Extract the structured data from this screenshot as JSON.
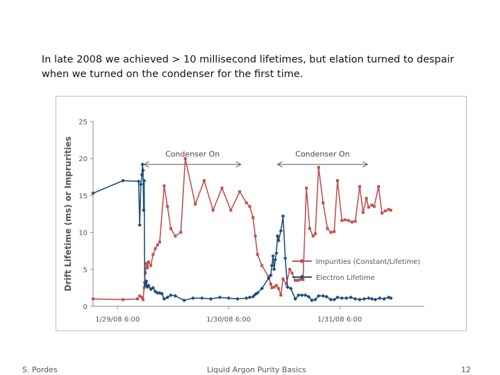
{
  "caption": {
    "line1": "In late 2008  we achieved > 10 millisecond lifetimes,  but elation turned to despair",
    "line2": "when we turned on the condenser for the first time."
  },
  "footer": {
    "author": "S. Pordes",
    "title": "Liquid Argon Purity Basics",
    "page": "12"
  },
  "chart_data": {
    "type": "line",
    "title": "",
    "xlabel": "",
    "ylabel": "Drift Lifetime (ms) or Imprurities",
    "xlim_days": [
      0,
      3.2
    ],
    "ylim": [
      0,
      25
    ],
    "yticks": [
      "0",
      "5",
      "10",
      "15",
      "20",
      "25"
    ],
    "xticks": [
      {
        "label": "1/29/08 6:00",
        "day": 0.0
      },
      {
        "label": "1/30/08 6:00",
        "day": 1.0
      },
      {
        "label": "1/31/08 6:00",
        "day": 2.0
      }
    ],
    "grid": false,
    "legend": "right",
    "annotations": [
      {
        "text": "Condenser On",
        "from_day": 0.24,
        "to_day": 1.11
      },
      {
        "text": "Condenser On",
        "from_day": 1.44,
        "to_day": 2.25
      }
    ],
    "colors": {
      "impurities": "#c0504d",
      "electron": "#1f4e79",
      "axis": "#8a8a8a",
      "text": "#555555"
    },
    "series": [
      {
        "name": "Impurities (Constant/Lifetime)",
        "marker": "square",
        "points": [
          [
            -0.22,
            1.0
          ],
          [
            0.05,
            0.9
          ],
          [
            0.18,
            1.0
          ],
          [
            0.2,
            1.4
          ],
          [
            0.22,
            1.2
          ],
          [
            0.23,
            0.9
          ],
          [
            0.24,
            2.5
          ],
          [
            0.25,
            4.5
          ],
          [
            0.26,
            5.8
          ],
          [
            0.27,
            5.2
          ],
          [
            0.28,
            6.0
          ],
          [
            0.3,
            5.5
          ],
          [
            0.32,
            7.0
          ],
          [
            0.34,
            7.8
          ],
          [
            0.36,
            8.3
          ],
          [
            0.38,
            8.7
          ],
          [
            0.42,
            16.3
          ],
          [
            0.45,
            13.5
          ],
          [
            0.48,
            10.5
          ],
          [
            0.52,
            9.5
          ],
          [
            0.57,
            10.0
          ],
          [
            0.61,
            20.0
          ],
          [
            0.7,
            13.8
          ],
          [
            0.78,
            17.0
          ],
          [
            0.86,
            13.0
          ],
          [
            0.94,
            16.0
          ],
          [
            1.02,
            13.0
          ],
          [
            1.1,
            15.5
          ],
          [
            1.16,
            14.0
          ],
          [
            1.19,
            13.5
          ],
          [
            1.22,
            12.0
          ],
          [
            1.24,
            9.5
          ],
          [
            1.26,
            7.0
          ],
          [
            1.3,
            5.5
          ],
          [
            1.36,
            4.0
          ],
          [
            1.38,
            3.0
          ],
          [
            1.39,
            2.5
          ],
          [
            1.41,
            2.6
          ],
          [
            1.43,
            2.8
          ],
          [
            1.45,
            2.4
          ],
          [
            1.47,
            1.5
          ],
          [
            1.49,
            3.7
          ],
          [
            1.52,
            3.0
          ],
          [
            1.55,
            5.0
          ],
          [
            1.57,
            4.5
          ],
          [
            1.6,
            3.5
          ],
          [
            1.62,
            3.5
          ],
          [
            1.64,
            3.6
          ],
          [
            1.67,
            3.6
          ],
          [
            1.7,
            16.0
          ],
          [
            1.73,
            10.5
          ],
          [
            1.76,
            9.5
          ],
          [
            1.78,
            9.8
          ],
          [
            1.81,
            18.8
          ],
          [
            1.85,
            14.0
          ],
          [
            1.89,
            10.5
          ],
          [
            1.92,
            10.0
          ],
          [
            1.95,
            10.1
          ],
          [
            1.98,
            17.0
          ],
          [
            2.02,
            11.6
          ],
          [
            2.05,
            11.7
          ],
          [
            2.08,
            11.6
          ],
          [
            2.11,
            11.4
          ],
          [
            2.14,
            11.5
          ],
          [
            2.18,
            16.2
          ],
          [
            2.21,
            12.7
          ],
          [
            2.24,
            14.6
          ],
          [
            2.26,
            13.4
          ],
          [
            2.29,
            13.7
          ],
          [
            2.31,
            13.5
          ],
          [
            2.35,
            16.2
          ],
          [
            2.38,
            12.6
          ],
          [
            2.41,
            12.9
          ],
          [
            2.44,
            13.1
          ],
          [
            2.46,
            13.0
          ]
        ]
      },
      {
        "name": "Electron Lifetime",
        "marker": "diamond",
        "points": [
          [
            -0.22,
            15.3
          ],
          [
            0.05,
            17.0
          ],
          [
            0.19,
            16.9
          ],
          [
            0.2,
            11.0
          ],
          [
            0.21,
            16.5
          ],
          [
            0.22,
            17.8
          ],
          [
            0.225,
            19.2
          ],
          [
            0.23,
            18.4
          ],
          [
            0.235,
            13.0
          ],
          [
            0.24,
            17.0
          ],
          [
            0.245,
            3.2
          ],
          [
            0.25,
            2.8
          ],
          [
            0.26,
            3.4
          ],
          [
            0.27,
            2.6
          ],
          [
            0.28,
            2.8
          ],
          [
            0.3,
            2.3
          ],
          [
            0.32,
            2.5
          ],
          [
            0.34,
            2.0
          ],
          [
            0.36,
            1.8
          ],
          [
            0.38,
            1.8
          ],
          [
            0.4,
            1.7
          ],
          [
            0.42,
            1.0
          ],
          [
            0.45,
            1.2
          ],
          [
            0.48,
            1.5
          ],
          [
            0.52,
            1.4
          ],
          [
            0.6,
            0.8
          ],
          [
            0.68,
            1.1
          ],
          [
            0.76,
            1.1
          ],
          [
            0.84,
            1.0
          ],
          [
            0.92,
            1.2
          ],
          [
            1.0,
            1.1
          ],
          [
            1.08,
            1.0
          ],
          [
            1.16,
            1.1
          ],
          [
            1.19,
            1.2
          ],
          [
            1.22,
            1.3
          ],
          [
            1.24,
            1.6
          ],
          [
            1.26,
            1.8
          ],
          [
            1.3,
            2.4
          ],
          [
            1.36,
            3.8
          ],
          [
            1.38,
            4.2
          ],
          [
            1.39,
            5.5
          ],
          [
            1.4,
            6.8
          ],
          [
            1.41,
            5.0
          ],
          [
            1.42,
            6.3
          ],
          [
            1.43,
            7.2
          ],
          [
            1.44,
            9.5
          ],
          [
            1.45,
            8.9
          ],
          [
            1.47,
            10.2
          ],
          [
            1.49,
            12.2
          ],
          [
            1.51,
            6.5
          ],
          [
            1.53,
            2.6
          ],
          [
            1.56,
            2.4
          ],
          [
            1.6,
            1.0
          ],
          [
            1.63,
            1.5
          ],
          [
            1.66,
            1.5
          ],
          [
            1.69,
            1.5
          ],
          [
            1.72,
            1.3
          ],
          [
            1.75,
            0.8
          ],
          [
            1.78,
            0.9
          ],
          [
            1.81,
            1.4
          ],
          [
            1.85,
            1.4
          ],
          [
            1.88,
            1.3
          ],
          [
            1.92,
            0.9
          ],
          [
            1.95,
            0.9
          ],
          [
            1.98,
            1.2
          ],
          [
            2.02,
            1.1
          ],
          [
            2.06,
            1.1
          ],
          [
            2.1,
            1.2
          ],
          [
            2.14,
            1.0
          ],
          [
            2.18,
            0.9
          ],
          [
            2.22,
            1.0
          ],
          [
            2.26,
            1.1
          ],
          [
            2.29,
            1.0
          ],
          [
            2.32,
            0.9
          ],
          [
            2.36,
            1.1
          ],
          [
            2.4,
            1.0
          ],
          [
            2.44,
            1.2
          ],
          [
            2.46,
            1.1
          ]
        ]
      }
    ]
  }
}
